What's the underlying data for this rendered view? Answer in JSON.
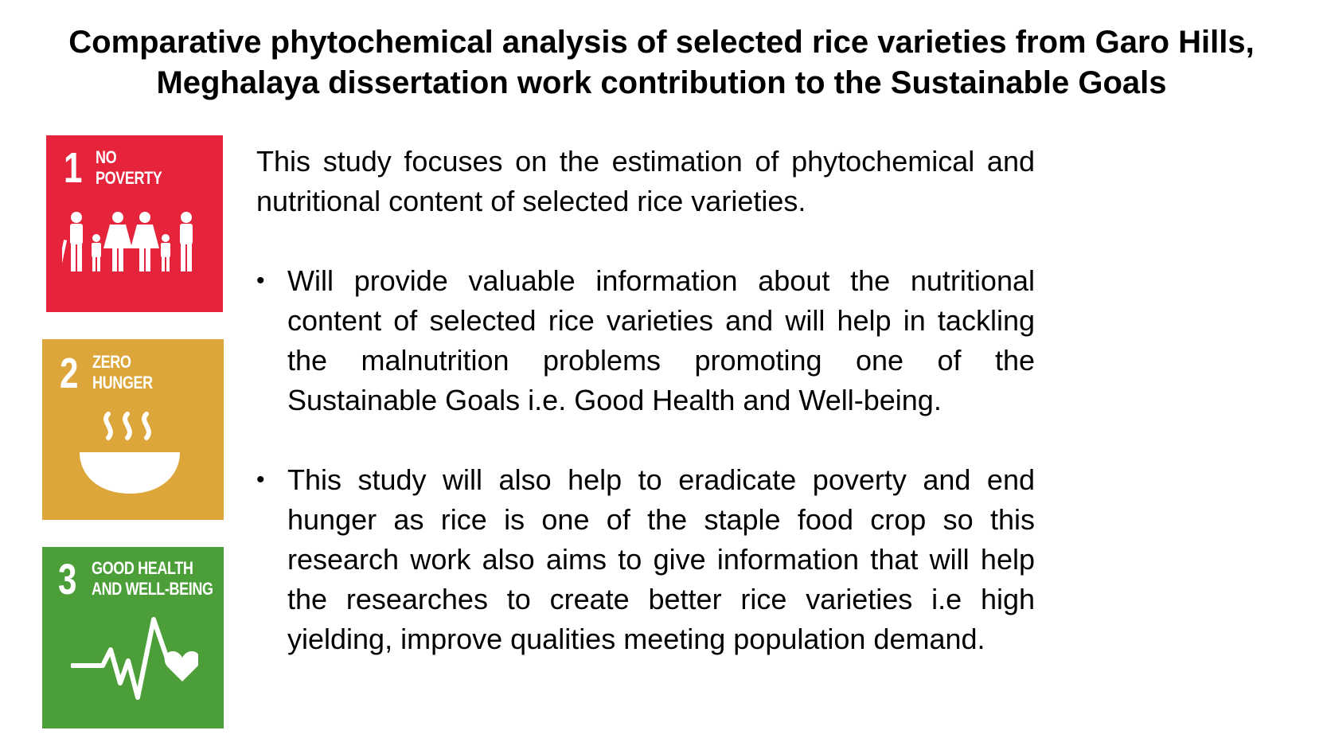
{
  "title": {
    "line1": "Comparative phytochemical analysis of selected rice varieties from Garo Hills,",
    "line2": "Meghalaya dissertation work contribution to the Sustainable Goals"
  },
  "sdg_tiles": [
    {
      "number": "1",
      "label_line1": "NO",
      "label_line2": "POVERTY",
      "color": "#E5243B",
      "icon": "family-icon"
    },
    {
      "number": "2",
      "label_line1": "ZERO",
      "label_line2": "HUNGER",
      "color": "#DDA63A",
      "icon": "bowl-icon"
    },
    {
      "number": "3",
      "label_line1": "GOOD HEALTH",
      "label_line2": "AND WELL-BEING",
      "color": "#4C9F38",
      "icon": "heartbeat-icon"
    }
  ],
  "content": {
    "intro": "This study focuses on the estimation of phytochemical and nutritional content of selected rice varieties.",
    "bullet_glyph": "•",
    "bullets": [
      "Will provide valuable information about the nutritional content of selected rice varieties  and will help in tackling the malnutrition problems promoting one of the Sustainable Goals i.e. Good Health and Well-being.",
      "This study will also help to eradicate poverty and end hunger as rice is one of the staple food crop so this research work also aims to give information that will help the researches to create better rice varieties i.e high yielding, improve qualities meeting population demand."
    ]
  }
}
